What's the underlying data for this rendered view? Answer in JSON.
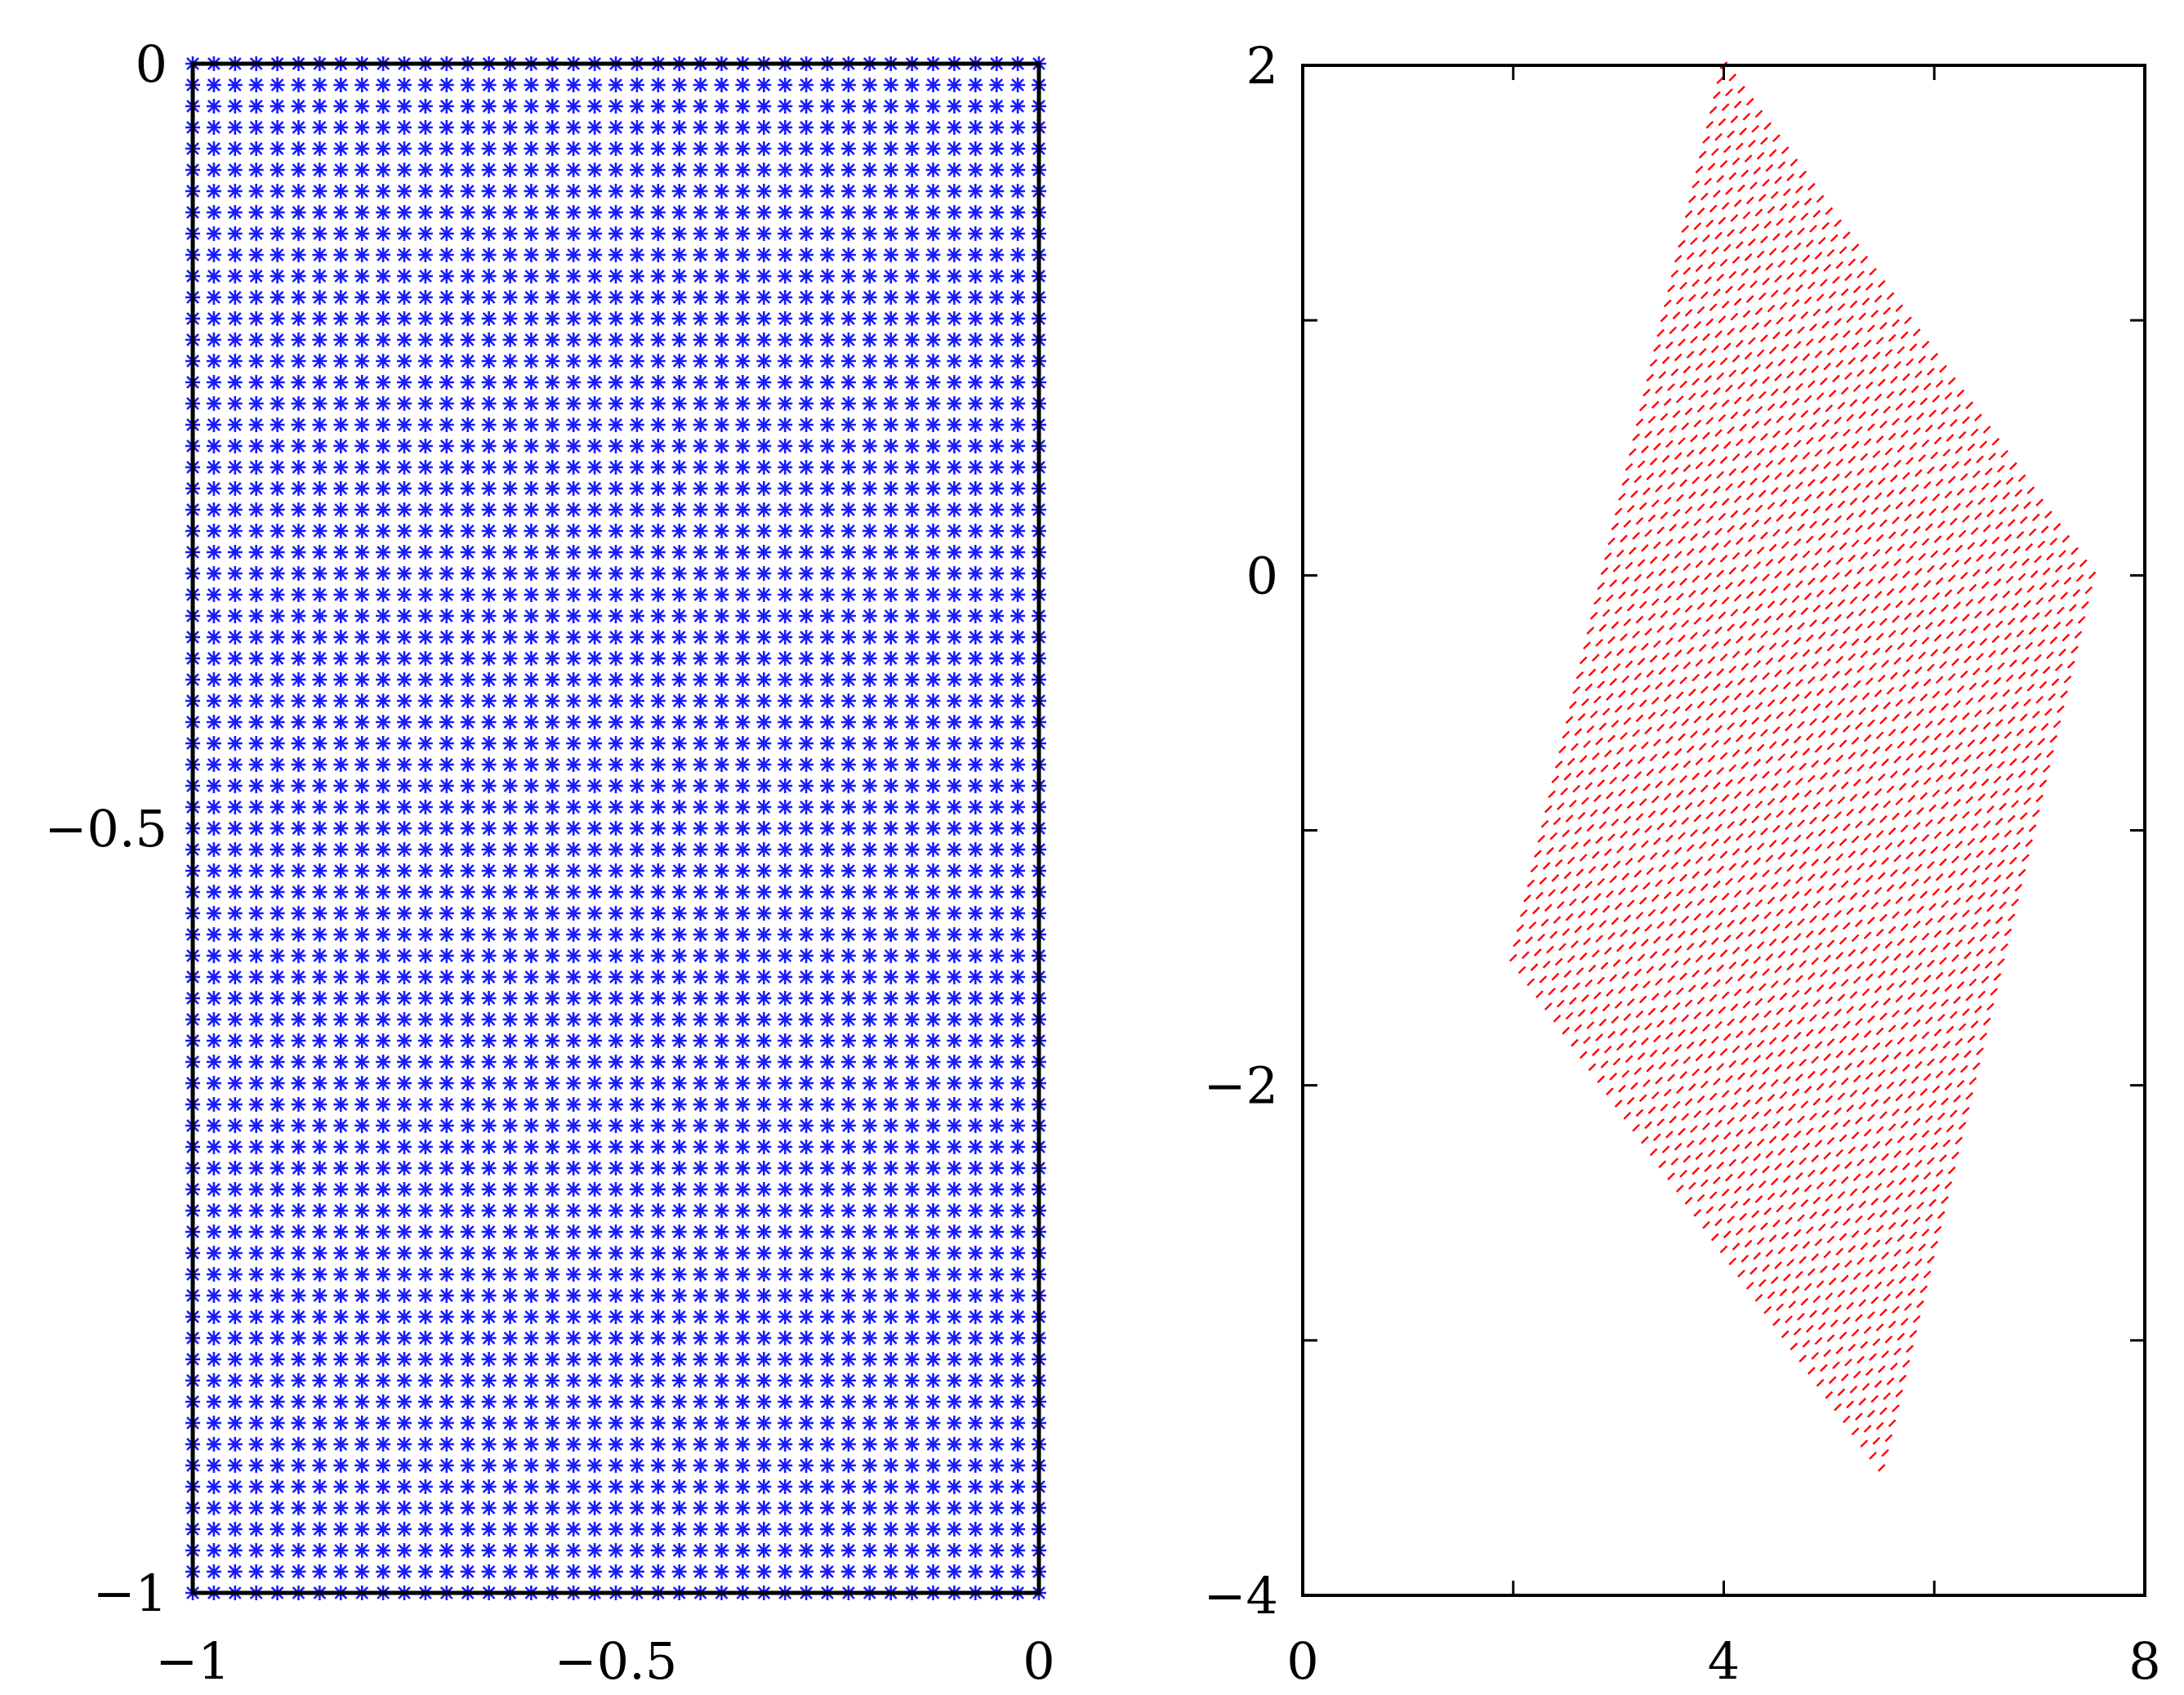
{
  "chart_data": [
    {
      "type": "scatter",
      "title": "",
      "xlabel": "",
      "ylabel": "",
      "xlim": [
        -1,
        0
      ],
      "ylim": [
        -1,
        0
      ],
      "x_ticks": [
        -1,
        -0.5,
        0
      ],
      "y_ticks": [
        0,
        -0.5,
        -1
      ],
      "x_tick_labels": [
        "−1",
        "−0.5",
        "0"
      ],
      "y_tick_labels": [
        "0",
        "−0.5",
        "−1"
      ],
      "grid": false,
      "marker": "asterisk",
      "color": "#1a1aff",
      "description_of_points": "uniform rectangular grid of points",
      "grid_points": {
        "x_start": -1,
        "x_end": 0,
        "x_count": 41,
        "y_start": -1,
        "y_end": 0,
        "y_count": 73
      }
    },
    {
      "type": "scatter",
      "title": "",
      "xlabel": "",
      "ylabel": "",
      "xlim": [
        0,
        8
      ],
      "ylim": [
        -4,
        2
      ],
      "x_ticks": [
        0,
        4,
        8
      ],
      "y_ticks": [
        2,
        0,
        -2,
        -4
      ],
      "x_tick_labels": [
        "0",
        "4",
        "8"
      ],
      "y_tick_labels": [
        "2",
        "0",
        "−2",
        "−4"
      ],
      "minor_x_ticks": [
        2,
        6
      ],
      "minor_y_ticks": [
        1,
        -1,
        -3
      ],
      "grid": false,
      "marker": "dot",
      "color": "#ff0000",
      "parallelogram_vertices": [
        [
          4,
          2
        ],
        [
          7.4,
          0
        ],
        [
          5.5,
          -3.5
        ],
        [
          2,
          -1.5
        ]
      ],
      "grid_points": {
        "u_count": 60,
        "v_count": 42
      }
    }
  ]
}
